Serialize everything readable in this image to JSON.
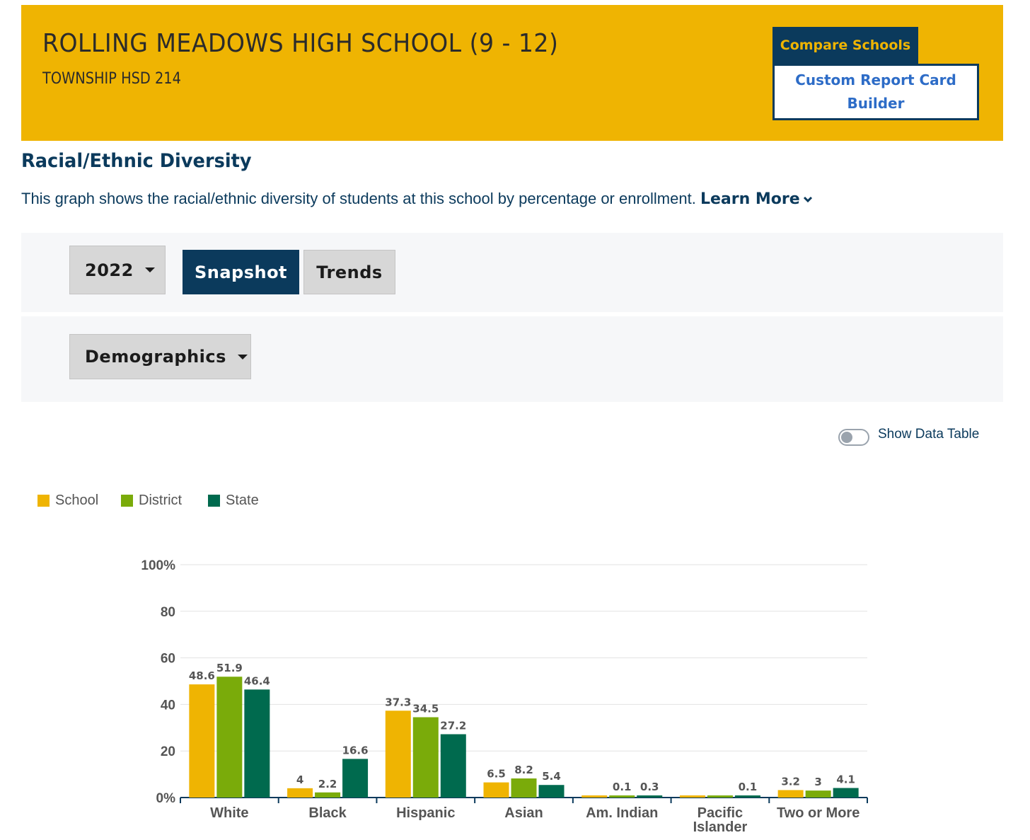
{
  "header": {
    "school_name": "ROLLING MEADOWS HIGH SCHOOL (9 - 12)",
    "district": "TOWNSHIP HSD 214",
    "compare_label": "Compare Schools",
    "custom_report_label": "Custom Report Card Builder"
  },
  "section": {
    "title": "Racial/Ethnic Diversity",
    "description": "This graph shows the racial/ethnic diversity of students at this school by percentage or enrollment.",
    "learn_more": "Learn More"
  },
  "controls": {
    "year": "2022",
    "snapshot_label": "Snapshot",
    "trends_label": "Trends",
    "demographics_label": "Demographics",
    "show_data_table": "Show Data Table"
  },
  "colors": {
    "school": "#efb402",
    "district": "#7aab0a",
    "state": "#006a4e"
  },
  "chart_data": {
    "type": "bar",
    "title": "",
    "xlabel": "",
    "ylabel": "",
    "ylim": [
      0,
      100
    ],
    "yticks": [
      "0%",
      "20",
      "40",
      "60",
      "80",
      "100%"
    ],
    "grid": true,
    "legend_position": "top-left",
    "categories": [
      "White",
      "Black",
      "Hispanic",
      "Asian",
      "Am. Indian",
      "Pacific Islander",
      "Two or More"
    ],
    "series": [
      {
        "name": "School",
        "values": [
          48.6,
          4,
          37.3,
          6.5,
          0,
          0,
          3.2
        ]
      },
      {
        "name": "District",
        "values": [
          51.9,
          2.2,
          34.5,
          8.2,
          0.1,
          0,
          3
        ]
      },
      {
        "name": "State",
        "values": [
          46.4,
          16.6,
          27.2,
          5.4,
          0.3,
          0.1,
          4.1
        ]
      }
    ]
  }
}
